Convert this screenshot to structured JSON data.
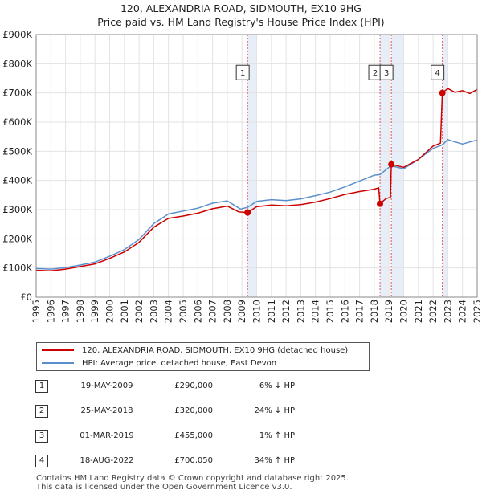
{
  "chart_data": {
    "type": "line",
    "title": "120, ALEXANDRIA ROAD, SIDMOUTH, EX10 9HG",
    "subtitle": "Price paid vs. HM Land Registry's House Price Index (HPI)",
    "xlim": [
      1995,
      2025
    ],
    "ylim": [
      0,
      900000
    ],
    "x_ticks": [
      "1995",
      "1996",
      "1997",
      "1998",
      "1999",
      "2000",
      "2001",
      "2002",
      "2003",
      "2004",
      "2005",
      "2006",
      "2007",
      "2008",
      "2009",
      "2010",
      "2011",
      "2012",
      "2013",
      "2014",
      "2015",
      "2016",
      "2017",
      "2018",
      "2019",
      "2020",
      "2021",
      "2022",
      "2023",
      "2024",
      "2025"
    ],
    "y_ticks": [
      {
        "value": 0,
        "label": "£0"
      },
      {
        "value": 100000,
        "label": "£100K"
      },
      {
        "value": 200000,
        "label": "£200K"
      },
      {
        "value": 300000,
        "label": "£300K"
      },
      {
        "value": 400000,
        "label": "£400K"
      },
      {
        "value": 500000,
        "label": "£500K"
      },
      {
        "value": 600000,
        "label": "£600K"
      },
      {
        "value": 700000,
        "label": "£700K"
      },
      {
        "value": 800000,
        "label": "£800K"
      },
      {
        "value": 900000,
        "label": "£900K"
      }
    ],
    "series": [
      {
        "name": "120, ALEXANDRIA ROAD, SIDMOUTH, EX10 9HG (detached house)",
        "color": "#cc0000",
        "points": [
          [
            1995.0,
            92000
          ],
          [
            1996.0,
            90000
          ],
          [
            1997.0,
            96000
          ],
          [
            1998.0,
            105000
          ],
          [
            1999.0,
            114000
          ],
          [
            2000.0,
            133000
          ],
          [
            2001.0,
            155000
          ],
          [
            2002.0,
            188000
          ],
          [
            2003.0,
            240000
          ],
          [
            2004.0,
            270000
          ],
          [
            2005.0,
            278000
          ],
          [
            2006.0,
            288000
          ],
          [
            2007.0,
            303000
          ],
          [
            2008.0,
            312000
          ],
          [
            2008.8,
            292000
          ],
          [
            2009.38,
            290000
          ],
          [
            2010.0,
            310000
          ],
          [
            2011.0,
            316000
          ],
          [
            2012.0,
            313000
          ],
          [
            2013.0,
            317000
          ],
          [
            2014.0,
            326000
          ],
          [
            2015.0,
            338000
          ],
          [
            2016.0,
            352000
          ],
          [
            2017.0,
            362000
          ],
          [
            2018.0,
            370000
          ],
          [
            2018.3,
            375000
          ],
          [
            2018.39,
            320000
          ],
          [
            2018.8,
            338000
          ],
          [
            2019.1,
            342000
          ],
          [
            2019.16,
            455000
          ],
          [
            2020.0,
            445000
          ],
          [
            2021.0,
            472000
          ],
          [
            2022.0,
            518000
          ],
          [
            2022.5,
            528000
          ],
          [
            2022.63,
            700050
          ],
          [
            2023.0,
            715000
          ],
          [
            2023.5,
            702000
          ],
          [
            2024.0,
            708000
          ],
          [
            2024.5,
            698000
          ],
          [
            2025.0,
            712000
          ]
        ]
      },
      {
        "name": "HPI: Average price, detached house, East Devon",
        "color": "#5b8fcc",
        "points": [
          [
            1995.0,
            98000
          ],
          [
            1996.0,
            96000
          ],
          [
            1997.0,
            101000
          ],
          [
            1998.0,
            110000
          ],
          [
            1999.0,
            120000
          ],
          [
            2000.0,
            140000
          ],
          [
            2001.0,
            163000
          ],
          [
            2002.0,
            198000
          ],
          [
            2003.0,
            252000
          ],
          [
            2004.0,
            285000
          ],
          [
            2005.0,
            295000
          ],
          [
            2006.0,
            305000
          ],
          [
            2007.0,
            322000
          ],
          [
            2008.0,
            330000
          ],
          [
            2008.9,
            302000
          ],
          [
            2009.38,
            308000
          ],
          [
            2010.0,
            328000
          ],
          [
            2011.0,
            334000
          ],
          [
            2012.0,
            331000
          ],
          [
            2013.0,
            337000
          ],
          [
            2014.0,
            348000
          ],
          [
            2015.0,
            360000
          ],
          [
            2016.0,
            378000
          ],
          [
            2017.0,
            398000
          ],
          [
            2018.0,
            418000
          ],
          [
            2018.39,
            420000
          ],
          [
            2019.0,
            445000
          ],
          [
            2019.16,
            450000
          ],
          [
            2020.0,
            440000
          ],
          [
            2021.0,
            472000
          ],
          [
            2022.0,
            510000
          ],
          [
            2022.63,
            522000
          ],
          [
            2023.0,
            540000
          ],
          [
            2023.5,
            532000
          ],
          [
            2024.0,
            525000
          ],
          [
            2024.5,
            532000
          ],
          [
            2025.0,
            538000
          ]
        ]
      }
    ],
    "sale_markers": [
      {
        "n": "1",
        "x": 2009.38,
        "y": 290000
      },
      {
        "n": "2",
        "x": 2018.39,
        "y": 320000
      },
      {
        "n": "3",
        "x": 2019.16,
        "y": 455000
      },
      {
        "n": "4",
        "x": 2022.63,
        "y": 700050
      }
    ],
    "marker_labels_y": 770000,
    "grid": true,
    "legend_position": "below-left"
  },
  "legend": {
    "property": "120, ALEXANDRIA ROAD, SIDMOUTH, EX10 9HG (detached house)",
    "hpi": "HPI: Average price, detached house, East Devon",
    "property_color": "#cc0000",
    "hpi_color": "#5b8fcc"
  },
  "sales": [
    {
      "n": "1",
      "date": "19-MAY-2009",
      "price": "£290,000",
      "hpi": "6% ↓ HPI"
    },
    {
      "n": "2",
      "date": "25-MAY-2018",
      "price": "£320,000",
      "hpi": "24% ↓ HPI"
    },
    {
      "n": "3",
      "date": "01-MAR-2019",
      "price": "£455,000",
      "hpi": "1% ↑ HPI"
    },
    {
      "n": "4",
      "date": "18-AUG-2022",
      "price": "£700,050",
      "hpi": "34% ↑ HPI"
    }
  ],
  "footer": {
    "line1": "Contains HM Land Registry data © Crown copyright and database right 2025.",
    "line2": "This data is licensed under the Open Government Licence v3.0."
  }
}
